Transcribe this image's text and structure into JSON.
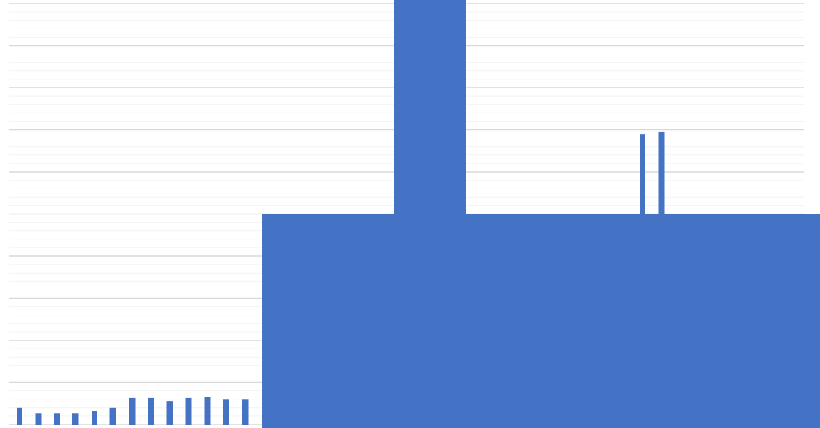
{
  "chart_data": [
    {
      "type": "bar",
      "title": "",
      "xlabel": "",
      "ylabel": "",
      "ylim": [
        0,
        100
      ],
      "grid": true,
      "gridlines": {
        "major_step": 10,
        "minor_step": 2
      },
      "legend": "none",
      "values": [
        4,
        2.6,
        2.6,
        2.6,
        3.3,
        4,
        6.3,
        6.3,
        5.6,
        6.3,
        6.6,
        5.9,
        5.9,
        68.9,
        69.6
      ],
      "colors": {
        "bar": "#4472C4",
        "major_grid": "#D9D9D9",
        "minor_grid": "#F2F2F2"
      }
    },
    {
      "type": "bar",
      "title": "",
      "xlabel": "",
      "ylabel": "",
      "values": [
        1,
        0.5
      ],
      "colors": {
        "bar": "#4472C4"
      }
    }
  ]
}
